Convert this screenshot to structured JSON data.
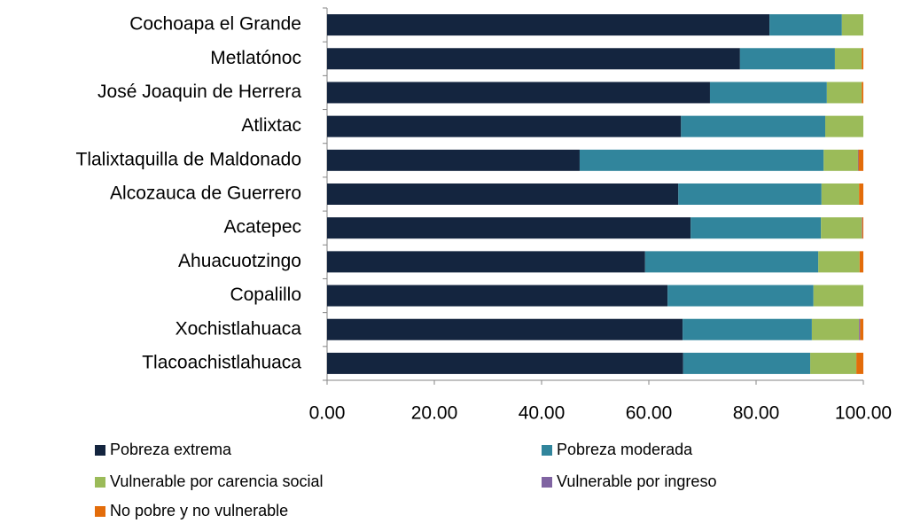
{
  "chart_data": {
    "type": "stacked-bar-horizontal",
    "categories": [
      "Cochoapa el Grande",
      "Metlatónoc",
      "José Joaquin de Herrera",
      "Atlixtac",
      "Tlalixtaquilla de Maldonado",
      "Alcozauca de Guerrero",
      "Acatepec",
      "Ahuacuotzingo",
      "Copalillo",
      "Xochistlahuaca",
      "Tlacoachistlahuaca"
    ],
    "series": [
      {
        "name": "Pobreza extrema",
        "color": "#14253f",
        "values": [
          82.5,
          77.0,
          71.4,
          66.0,
          47.1,
          65.5,
          67.8,
          59.3,
          63.5,
          66.3,
          66.4
        ]
      },
      {
        "name": "Pobreza moderada",
        "color": "#31859c",
        "values": [
          13.5,
          17.7,
          21.8,
          26.9,
          45.5,
          26.7,
          24.3,
          32.3,
          27.2,
          24.1,
          23.7
        ]
      },
      {
        "name": "Vulnerable por carencia social",
        "color": "#9bbb59",
        "values": [
          4.0,
          5.0,
          6.5,
          7.1,
          6.4,
          7.0,
          7.6,
          7.7,
          9.3,
          8.8,
          8.6
        ]
      },
      {
        "name": "Vulnerable por ingreso",
        "color": "#8064a2",
        "values": [
          0,
          0,
          0,
          0,
          0.1,
          0,
          0.1,
          0,
          0,
          0.2,
          0
        ]
      },
      {
        "name": "No pobre y no vulnerable",
        "color": "#e36c0a",
        "values": [
          0,
          0.3,
          0.3,
          0,
          0.9,
          0.8,
          0.2,
          0.7,
          0,
          0.6,
          1.3
        ]
      }
    ],
    "xlim": [
      0,
      100
    ],
    "xticks": [
      {
        "value": 0,
        "label": "0.00"
      },
      {
        "value": 20,
        "label": "20.00"
      },
      {
        "value": 40,
        "label": "40.00"
      },
      {
        "value": 60,
        "label": "60.00"
      },
      {
        "value": 80,
        "label": "80.00"
      },
      {
        "value": 100,
        "label": "100.00"
      }
    ]
  }
}
